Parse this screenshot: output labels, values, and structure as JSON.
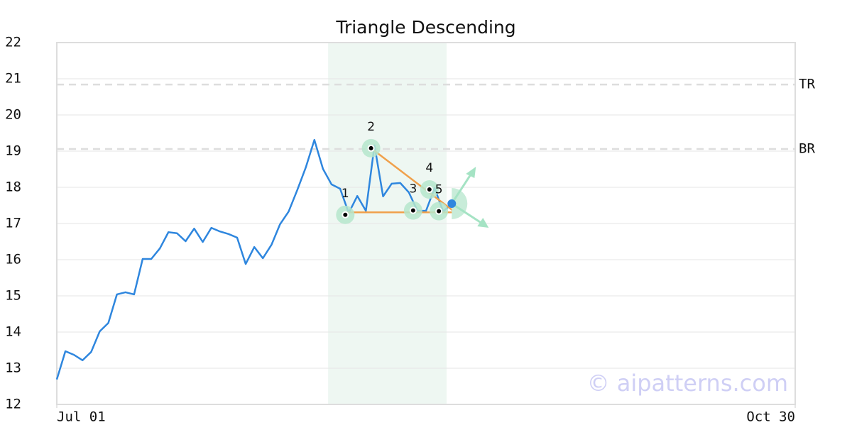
{
  "chart_data": {
    "type": "line",
    "title": "Triangle Descending",
    "x": [
      0,
      1,
      2,
      3,
      4,
      5,
      6,
      7,
      8,
      9,
      10,
      11,
      12,
      13,
      14,
      15,
      16,
      17,
      18,
      19,
      20,
      21,
      22,
      23,
      24,
      25,
      26,
      27,
      28,
      29,
      30,
      31,
      32,
      33,
      34,
      35,
      36,
      37,
      38,
      39,
      40,
      41,
      42,
      43,
      44,
      45,
      46
    ],
    "values": [
      12.69,
      13.47,
      13.37,
      13.22,
      13.45,
      14.02,
      14.25,
      15.04,
      15.1,
      15.04,
      16.02,
      16.02,
      16.31,
      16.76,
      16.73,
      16.51,
      16.86,
      16.49,
      16.88,
      16.78,
      16.71,
      16.61,
      15.88,
      16.35,
      16.04,
      16.41,
      16.98,
      17.33,
      17.92,
      18.55,
      19.31,
      18.51,
      18.08,
      17.96,
      17.29,
      17.76,
      17.35,
      19.16,
      17.75,
      18.1,
      18.12,
      17.86,
      17.35,
      17.35,
      17.98,
      17.33,
      17.55
    ],
    "color": "#2e86de",
    "xlim": [
      0,
      86
    ],
    "xticks": [
      {
        "value": 0,
        "label": "Jul 01"
      },
      {
        "value": 86,
        "label": "Oct 30"
      }
    ],
    "ylim": [
      12,
      22
    ],
    "yticks": [
      12,
      13,
      14,
      15,
      16,
      17,
      18,
      19,
      20,
      21,
      22
    ],
    "grid": true,
    "highlight": {
      "x": [
        31.6,
        45.4
      ],
      "color": "#eef7f2"
    },
    "levels": [
      {
        "label": "TR",
        "value": 20.84
      },
      {
        "label": "BR",
        "value": 19.06
      }
    ],
    "pattern_points": {
      "labels": [
        "1",
        "2",
        "3",
        "4",
        "5"
      ],
      "x": [
        33.6,
        36.6,
        41.5,
        43.4,
        44.5
      ],
      "y": [
        17.24,
        19.08,
        17.36,
        17.94,
        17.34
      ]
    },
    "trendlines": [
      {
        "x": [
          36.6,
          46.4
        ],
        "y": [
          19.08,
          17.31
        ]
      },
      {
        "x": [
          33.6,
          46.4
        ],
        "y": [
          17.31,
          17.31
        ]
      }
    ],
    "trend_color": "#f0a04b",
    "watermark": "© aipatterns.com"
  }
}
